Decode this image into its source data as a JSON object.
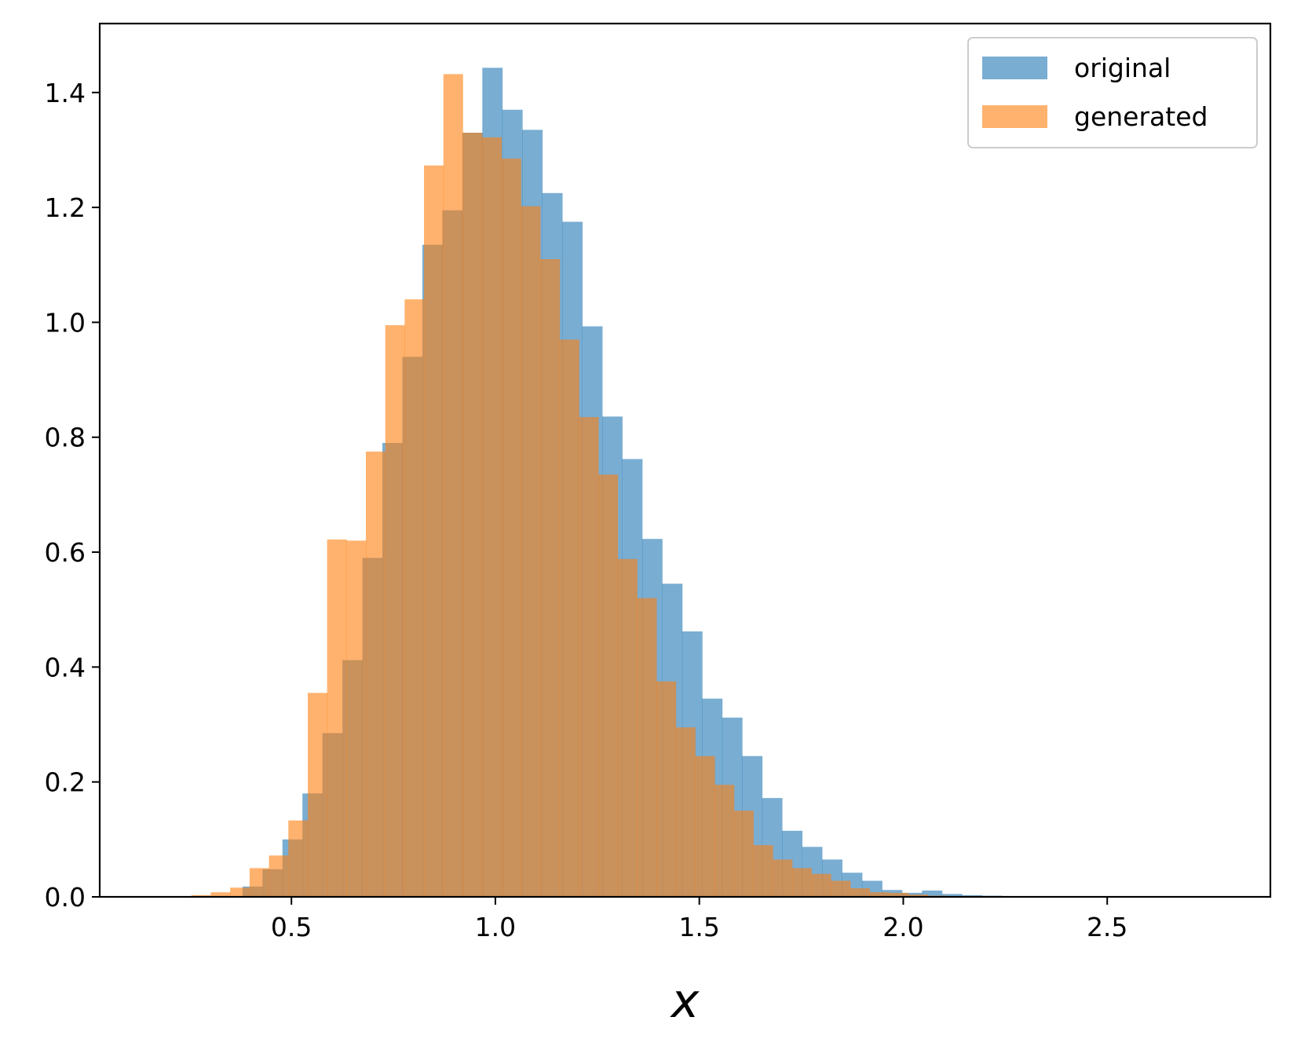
{
  "chart_data": {
    "type": "bar",
    "subtype": "overlapping-histogram",
    "title": "",
    "xlabel": "x",
    "ylabel": "",
    "xlim": [
      0.03,
      2.9
    ],
    "ylim": [
      0,
      1.52
    ],
    "xticks": [
      0.5,
      1.0,
      1.5,
      2.0,
      2.5
    ],
    "xtick_labels": [
      "0.5",
      "1.0",
      "1.5",
      "2.0",
      "2.5"
    ],
    "yticks": [
      0.0,
      0.2,
      0.4,
      0.6,
      0.8,
      1.0,
      1.2,
      1.4
    ],
    "ytick_labels": [
      "0.0",
      "0.2",
      "0.4",
      "0.6",
      "0.8",
      "1.0",
      "1.2",
      "1.4"
    ],
    "grid": false,
    "legend_position": "top-right",
    "bar_opacity": 0.6,
    "series": [
      {
        "name": "original",
        "color": "#1f77b4",
        "bin_start": 0.38,
        "bin_width": 0.049,
        "values": [
          0.018,
          0.048,
          0.1,
          0.18,
          0.285,
          0.412,
          0.59,
          0.79,
          0.94,
          1.135,
          1.195,
          1.33,
          1.443,
          1.37,
          1.335,
          1.225,
          1.175,
          0.993,
          0.836,
          0.762,
          0.623,
          0.545,
          0.462,
          0.345,
          0.312,
          0.245,
          0.172,
          0.115,
          0.087,
          0.065,
          0.042,
          0.028,
          0.012,
          0.007,
          0.011,
          0.005,
          0.003,
          0.002
        ]
      },
      {
        "name": "generated",
        "color": "#ff7f0e",
        "bin_start": 0.255,
        "bin_width": 0.0475,
        "values": [
          0.003,
          0.008,
          0.016,
          0.05,
          0.072,
          0.133,
          0.355,
          0.622,
          0.62,
          0.775,
          0.995,
          1.04,
          1.273,
          1.432,
          1.33,
          1.322,
          1.285,
          1.202,
          1.11,
          0.97,
          0.835,
          0.735,
          0.588,
          0.52,
          0.375,
          0.295,
          0.245,
          0.195,
          0.15,
          0.09,
          0.065,
          0.05,
          0.04,
          0.028,
          0.015,
          0.008,
          0.007,
          0.004,
          0.002,
          0.001
        ]
      }
    ]
  }
}
